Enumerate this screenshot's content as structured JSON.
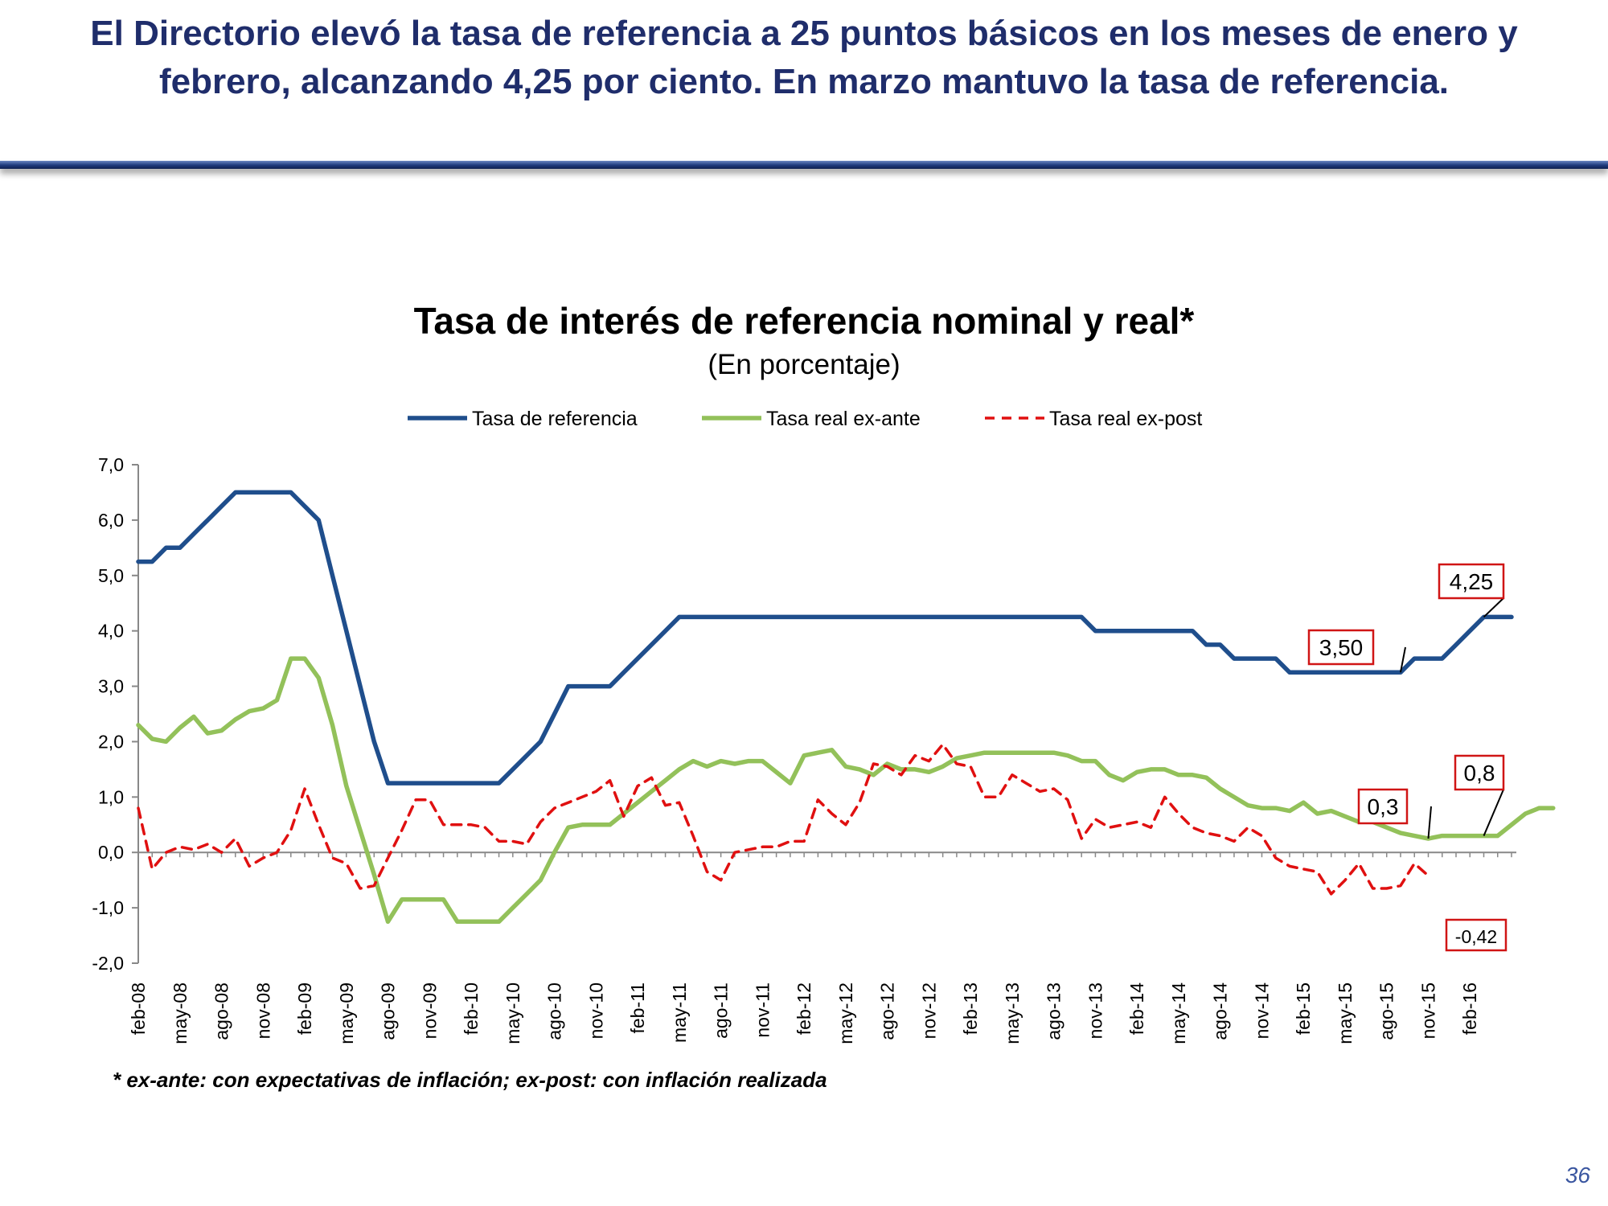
{
  "headline": "El Directorio elevó la tasa de referencia a 25 puntos básicos en los meses de enero y febrero, alcanzando 4,25 por ciento. En marzo mantuvo la tasa de referencia.",
  "page_number": "36",
  "footnote": "* ex-ante: con expectativas de inflación; ex-post: con inflación  realizada",
  "colors": {
    "headline": "#1f2d6b",
    "nominal": "#1f4e8c",
    "exante": "#93c15a",
    "expost": "#e01010",
    "callout_border": "#d01515"
  },
  "chart_data": {
    "type": "line",
    "title": "Tasa de interés de referencia nominal y real*",
    "subtitle": "(En porcentaje)",
    "legend_position": "top",
    "grid": false,
    "ylim": [
      -2.0,
      7.0
    ],
    "yticks": [
      "7,0",
      "6,0",
      "5,0",
      "4,0",
      "3,0",
      "2,0",
      "1,0",
      "0,0",
      "-1,0",
      "-2,0"
    ],
    "x_start": "feb-08",
    "x_end": "mar-16",
    "xticks": [
      "feb-08",
      "may-08",
      "ago-08",
      "nov-08",
      "feb-09",
      "may-09",
      "ago-09",
      "nov-09",
      "feb-10",
      "may-10",
      "ago-10",
      "nov-10",
      "feb-11",
      "may-11",
      "ago-11",
      "nov-11",
      "feb-12",
      "may-12",
      "ago-12",
      "nov-12",
      "feb-13",
      "may-13",
      "ago-13",
      "nov-13",
      "feb-14",
      "may-14",
      "ago-14",
      "nov-14",
      "feb-15",
      "may-15",
      "ago-15",
      "nov-15",
      "feb-16"
    ],
    "series": [
      {
        "name": "Tasa de referencia",
        "style": "solid",
        "values": [
          5.25,
          5.25,
          5.5,
          5.5,
          5.75,
          6.0,
          6.25,
          6.5,
          6.5,
          6.5,
          6.5,
          6.5,
          6.25,
          6.0,
          5.0,
          4.0,
          3.0,
          2.0,
          1.25,
          1.25,
          1.25,
          1.25,
          1.25,
          1.25,
          1.25,
          1.25,
          1.25,
          1.5,
          1.75,
          2.0,
          2.5,
          3.0,
          3.0,
          3.0,
          3.0,
          3.25,
          3.5,
          3.75,
          4.0,
          4.25,
          4.25,
          4.25,
          4.25,
          4.25,
          4.25,
          4.25,
          4.25,
          4.25,
          4.25,
          4.25,
          4.25,
          4.25,
          4.25,
          4.25,
          4.25,
          4.25,
          4.25,
          4.25,
          4.25,
          4.25,
          4.25,
          4.25,
          4.25,
          4.25,
          4.25,
          4.25,
          4.25,
          4.25,
          4.25,
          4.0,
          4.0,
          4.0,
          4.0,
          4.0,
          4.0,
          4.0,
          4.0,
          3.75,
          3.75,
          3.5,
          3.5,
          3.5,
          3.5,
          3.25,
          3.25,
          3.25,
          3.25,
          3.25,
          3.25,
          3.25,
          3.25,
          3.25,
          3.5,
          3.5,
          3.5,
          3.75,
          4.0,
          4.25,
          4.25,
          4.25
        ]
      },
      {
        "name": "Tasa real ex-ante",
        "style": "solid",
        "values": [
          2.3,
          2.05,
          2.0,
          2.25,
          2.45,
          2.15,
          2.2,
          2.4,
          2.55,
          2.6,
          2.75,
          3.5,
          3.5,
          3.15,
          2.3,
          1.2,
          0.4,
          -0.4,
          -1.25,
          -0.85,
          -0.85,
          -0.85,
          -0.85,
          -1.25,
          -1.25,
          -1.25,
          -1.25,
          -1.0,
          -0.75,
          -0.5,
          0.0,
          0.45,
          0.5,
          0.5,
          0.5,
          0.7,
          0.9,
          1.1,
          1.3,
          1.5,
          1.65,
          1.55,
          1.65,
          1.6,
          1.65,
          1.65,
          1.45,
          1.25,
          1.75,
          1.8,
          1.85,
          1.55,
          1.5,
          1.4,
          1.6,
          1.5,
          1.5,
          1.45,
          1.55,
          1.7,
          1.75,
          1.8,
          1.8,
          1.8,
          1.8,
          1.8,
          1.8,
          1.75,
          1.65,
          1.65,
          1.4,
          1.3,
          1.45,
          1.5,
          1.5,
          1.4,
          1.4,
          1.35,
          1.15,
          1.0,
          0.85,
          0.8,
          0.8,
          0.75,
          0.9,
          0.7,
          0.75,
          0.65,
          0.55,
          0.55,
          0.45,
          0.35,
          0.3,
          0.25,
          0.3,
          0.3,
          0.3,
          0.3,
          0.3,
          0.5,
          0.7,
          0.8,
          0.8
        ]
      },
      {
        "name": "Tasa real ex-post",
        "style": "dashed",
        "values": [
          0.8,
          -0.3,
          0.0,
          0.1,
          0.05,
          0.15,
          0.0,
          0.25,
          -0.25,
          -0.1,
          0.0,
          0.4,
          1.15,
          0.5,
          -0.1,
          -0.2,
          -0.65,
          -0.6,
          -0.1,
          0.4,
          0.95,
          0.95,
          0.5,
          0.5,
          0.5,
          0.45,
          0.2,
          0.2,
          0.15,
          0.55,
          0.8,
          0.9,
          1.0,
          1.1,
          1.3,
          0.65,
          1.2,
          1.35,
          0.85,
          0.9,
          0.3,
          -0.35,
          -0.5,
          0.0,
          0.05,
          0.1,
          0.1,
          0.2,
          0.2,
          0.95,
          0.7,
          0.5,
          0.9,
          1.6,
          1.55,
          1.4,
          1.75,
          1.65,
          1.95,
          1.6,
          1.55,
          1.0,
          1.0,
          1.4,
          1.25,
          1.1,
          1.15,
          0.95,
          0.25,
          0.6,
          0.45,
          0.5,
          0.55,
          0.45,
          1.0,
          0.7,
          0.45,
          0.35,
          0.3,
          0.2,
          0.45,
          0.3,
          -0.1,
          -0.25,
          -0.3,
          -0.35,
          -0.75,
          -0.5,
          -0.2,
          -0.65,
          -0.65,
          -0.6,
          -0.2,
          -0.42
        ]
      }
    ],
    "annotations": [
      {
        "label": "4,25",
        "series": 0,
        "month": "mar-16"
      },
      {
        "label": "3,50",
        "series": 0,
        "month": "sep-15"
      },
      {
        "label": "0,8",
        "series": 1,
        "month": "mar-16"
      },
      {
        "label": "0,3",
        "series": 1,
        "month": "nov-15"
      },
      {
        "label": "-0,42",
        "series": 2,
        "month": "mar-16"
      }
    ]
  }
}
